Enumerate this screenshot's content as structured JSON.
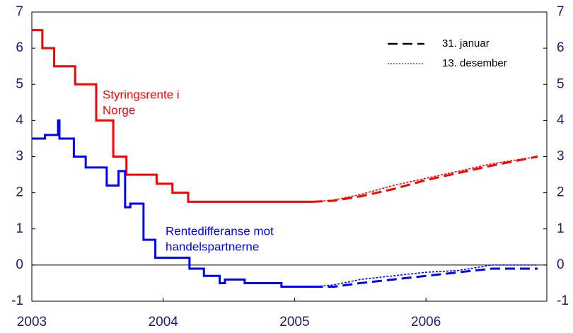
{
  "chart_data": {
    "type": "line",
    "step_series": true,
    "xlim": [
      2003,
      2006.92
    ],
    "xticks": [
      2003,
      2004,
      2005,
      2006
    ],
    "ylim": [
      -1,
      7
    ],
    "yticks": [
      -1,
      0,
      1,
      2,
      3,
      4,
      5,
      6,
      7
    ],
    "y2lim": [
      -1,
      7
    ],
    "y2ticks": [
      -1,
      0,
      1,
      2,
      3,
      4,
      5,
      6,
      7
    ],
    "zero_line": true,
    "series": [
      {
        "color": "#ff0000",
        "style": "solid",
        "step": true,
        "x": [
          2003.0,
          2003.08,
          2003.17,
          2003.33,
          2003.49,
          2003.62,
          2003.72,
          2003.95,
          2004.07,
          2004.19,
          2005.14
        ],
        "values": [
          6.5,
          6.0,
          5.5,
          5.0,
          4.0,
          3.0,
          2.5,
          2.25,
          2.0,
          1.75,
          1.75
        ]
      },
      {
        "color": "#ff0000",
        "style": "dashed",
        "x": [
          2005.14,
          2005.3,
          2005.5,
          2005.75,
          2006.0,
          2006.25,
          2006.5,
          2006.85
        ],
        "values": [
          1.75,
          1.78,
          1.9,
          2.1,
          2.35,
          2.55,
          2.75,
          3.0
        ]
      },
      {
        "color": "#ff0000",
        "style": "dotted",
        "x": [
          2005.14,
          2005.3,
          2005.5,
          2005.75,
          2006.0,
          2006.25,
          2006.5,
          2006.85
        ],
        "values": [
          1.75,
          1.8,
          1.95,
          2.2,
          2.4,
          2.6,
          2.8,
          3.0
        ]
      },
      {
        "color": "#0000ff",
        "style": "solid",
        "step": true,
        "x": [
          2003.0,
          2003.1,
          2003.2,
          2003.21,
          2003.32,
          2003.41,
          2003.57,
          2003.66,
          2003.71,
          2003.75,
          2003.85,
          2003.94,
          2004.2,
          2004.31,
          2004.43,
          2004.47,
          2004.62,
          2004.9,
          2005.14
        ],
        "values": [
          3.5,
          3.6,
          4.0,
          3.5,
          3.0,
          2.7,
          2.2,
          2.6,
          1.6,
          1.7,
          0.7,
          0.2,
          -0.1,
          -0.3,
          -0.5,
          -0.4,
          -0.5,
          -0.6,
          -0.6
        ]
      },
      {
        "color": "#0000ff",
        "style": "dashed",
        "x": [
          2005.14,
          2005.3,
          2005.5,
          2005.75,
          2006.0,
          2006.25,
          2006.5,
          2006.85
        ],
        "values": [
          -0.6,
          -0.6,
          -0.5,
          -0.4,
          -0.3,
          -0.2,
          -0.1,
          -0.1
        ]
      },
      {
        "color": "#0000ff",
        "style": "dotted",
        "x": [
          2005.14,
          2005.3,
          2005.5,
          2005.75,
          2006.0,
          2006.25,
          2006.5,
          2006.85
        ],
        "values": [
          -0.6,
          -0.55,
          -0.4,
          -0.3,
          -0.2,
          -0.15,
          0.0,
          0.0
        ]
      }
    ],
    "legend": {
      "corner": "upper right",
      "color": "#000000",
      "entries": [
        {
          "label": "31. januar",
          "style": "dashed"
        },
        {
          "label": "13. desember",
          "style": "dotted"
        }
      ]
    },
    "annotations": [
      {
        "lines": [
          "Styringsrente i",
          "Norge"
        ],
        "color": "#ff0000"
      },
      {
        "lines": [
          "Rentedifferanse mot",
          "handelspartnerne"
        ],
        "color": "#0000ff"
      }
    ]
  }
}
